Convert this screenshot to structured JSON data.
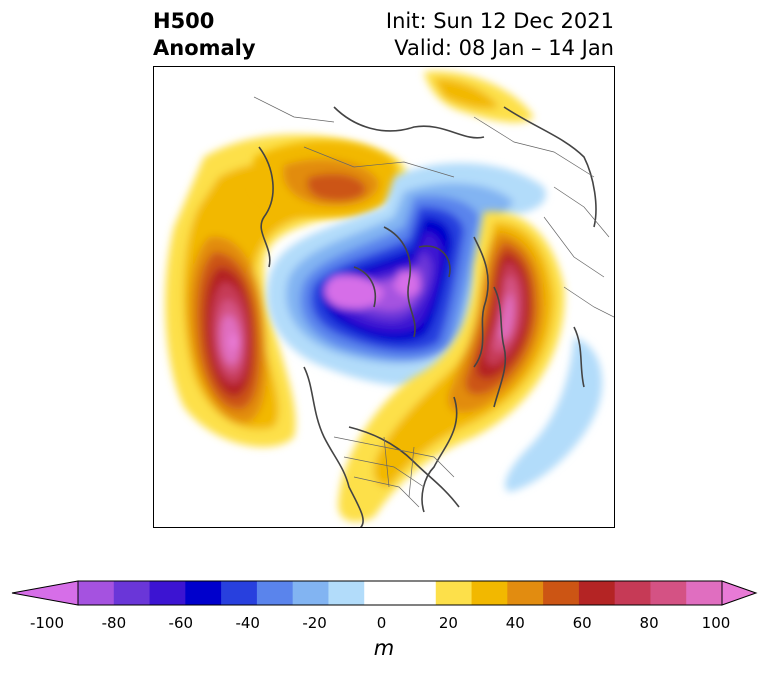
{
  "title": {
    "variable": "H500",
    "kind": "Anomaly",
    "init": "Init: Sun 12 Dec 2021",
    "valid": "Valid: 08 Jan – 14 Jan"
  },
  "colorbar": {
    "unit": "m",
    "ticks": [
      "-100",
      "-80",
      "-60",
      "-40",
      "-20",
      "0",
      "20",
      "40",
      "60",
      "80",
      "100"
    ],
    "colors": [
      "#d66ee8",
      "#a552e0",
      "#6a36d8",
      "#3c14d2",
      "#0000cc",
      "#2840de",
      "#5a84ec",
      "#82b4f2",
      "#b2dcfa",
      "#ffffff",
      "#ffffff",
      "#fde04a",
      "#f2b800",
      "#e28c10",
      "#cc5514",
      "#b42424",
      "#c63a56",
      "#d45284",
      "#e06ec0",
      "#e87ad6"
    ]
  }
}
